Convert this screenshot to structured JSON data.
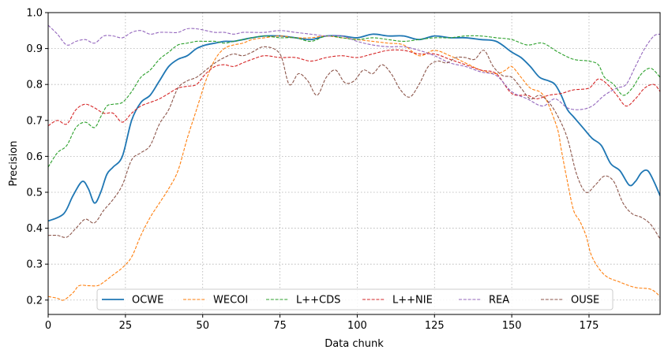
{
  "chart_data": {
    "type": "line",
    "xlabel": "Data chunk",
    "ylabel": "Precision",
    "xlim": [
      0,
      198
    ],
    "ylim": [
      0.16,
      1.0
    ],
    "xticks": [
      0,
      25,
      50,
      75,
      100,
      125,
      150,
      175
    ],
    "yticks": [
      0.2,
      0.3,
      0.4,
      0.5,
      0.6,
      0.7,
      0.8,
      0.9,
      1.0
    ],
    "grid": true,
    "legend_placement": "lower-center",
    "series": [
      {
        "name": "OCWE",
        "color": "#1f77b4",
        "style": "solid",
        "x": [
          0,
          5,
          8,
          11,
          13,
          15,
          17,
          19,
          21,
          24,
          27,
          30,
          33,
          36,
          39,
          42,
          45,
          48,
          51,
          54,
          57,
          60,
          63,
          66,
          70,
          75,
          80,
          85,
          90,
          95,
          100,
          105,
          110,
          115,
          120,
          125,
          130,
          135,
          140,
          145,
          150,
          153,
          156,
          159,
          162,
          164,
          166,
          168,
          170,
          173,
          176,
          179,
          182,
          185,
          188,
          190,
          192,
          194,
          196,
          198
        ],
        "y": [
          0.42,
          0.44,
          0.49,
          0.53,
          0.51,
          0.47,
          0.5,
          0.55,
          0.57,
          0.6,
          0.7,
          0.75,
          0.77,
          0.81,
          0.85,
          0.87,
          0.88,
          0.9,
          0.91,
          0.915,
          0.92,
          0.92,
          0.925,
          0.93,
          0.935,
          0.935,
          0.93,
          0.925,
          0.935,
          0.935,
          0.93,
          0.94,
          0.935,
          0.935,
          0.925,
          0.935,
          0.93,
          0.93,
          0.925,
          0.92,
          0.89,
          0.875,
          0.85,
          0.82,
          0.81,
          0.8,
          0.77,
          0.73,
          0.71,
          0.68,
          0.65,
          0.63,
          0.58,
          0.56,
          0.52,
          0.53,
          0.555,
          0.56,
          0.53,
          0.49
        ]
      },
      {
        "name": "WECOI",
        "color": "#ff7f0e",
        "style": "dashed",
        "x": [
          0,
          3,
          5,
          8,
          10,
          13,
          16,
          18,
          21,
          24,
          27,
          30,
          33,
          36,
          39,
          42,
          45,
          48,
          51,
          54,
          57,
          60,
          63,
          66,
          70,
          75,
          80,
          85,
          90,
          95,
          100,
          105,
          110,
          115,
          120,
          125,
          130,
          135,
          140,
          145,
          148,
          150,
          153,
          156,
          159,
          161,
          163,
          165,
          166,
          168,
          170,
          172,
          174,
          176,
          180,
          185,
          190,
          195,
          198
        ],
        "y": [
          0.21,
          0.205,
          0.2,
          0.22,
          0.24,
          0.24,
          0.24,
          0.25,
          0.27,
          0.29,
          0.32,
          0.38,
          0.43,
          0.47,
          0.51,
          0.56,
          0.65,
          0.73,
          0.81,
          0.87,
          0.9,
          0.91,
          0.915,
          0.925,
          0.93,
          0.935,
          0.93,
          0.93,
          0.935,
          0.93,
          0.925,
          0.92,
          0.915,
          0.91,
          0.88,
          0.895,
          0.88,
          0.86,
          0.84,
          0.83,
          0.84,
          0.85,
          0.82,
          0.79,
          0.78,
          0.76,
          0.72,
          0.67,
          0.62,
          0.53,
          0.45,
          0.42,
          0.38,
          0.32,
          0.27,
          0.25,
          0.235,
          0.23,
          0.21
        ]
      },
      {
        "name": "L++CDS",
        "color": "#2ca02c",
        "style": "dashed",
        "x": [
          0,
          3,
          6,
          9,
          12,
          15,
          17,
          19,
          21,
          24,
          27,
          30,
          33,
          36,
          39,
          42,
          45,
          48,
          51,
          54,
          57,
          60,
          63,
          66,
          70,
          75,
          80,
          85,
          90,
          95,
          100,
          105,
          110,
          115,
          120,
          125,
          130,
          135,
          140,
          145,
          150,
          155,
          160,
          165,
          170,
          175,
          178,
          180,
          183,
          186,
          189,
          192,
          195,
          198
        ],
        "y": [
          0.57,
          0.61,
          0.63,
          0.68,
          0.695,
          0.68,
          0.71,
          0.74,
          0.745,
          0.75,
          0.78,
          0.82,
          0.84,
          0.87,
          0.89,
          0.91,
          0.915,
          0.92,
          0.92,
          0.92,
          0.915,
          0.92,
          0.925,
          0.93,
          0.935,
          0.93,
          0.93,
          0.92,
          0.935,
          0.93,
          0.925,
          0.93,
          0.925,
          0.92,
          0.925,
          0.93,
          0.93,
          0.935,
          0.935,
          0.93,
          0.925,
          0.91,
          0.915,
          0.89,
          0.87,
          0.865,
          0.855,
          0.82,
          0.8,
          0.77,
          0.79,
          0.83,
          0.845,
          0.82
        ]
      },
      {
        "name": "L++NIE",
        "color": "#d62728",
        "style": "dashed",
        "x": [
          0,
          3,
          6,
          9,
          12,
          15,
          18,
          21,
          24,
          27,
          30,
          33,
          36,
          39,
          42,
          45,
          48,
          51,
          54,
          57,
          60,
          63,
          66,
          70,
          75,
          80,
          85,
          90,
          95,
          100,
          105,
          110,
          115,
          120,
          125,
          130,
          135,
          140,
          145,
          150,
          155,
          158,
          162,
          166,
          170,
          175,
          178,
          181,
          184,
          187,
          190,
          193,
          196,
          198
        ],
        "y": [
          0.685,
          0.7,
          0.69,
          0.73,
          0.745,
          0.735,
          0.72,
          0.72,
          0.695,
          0.72,
          0.74,
          0.75,
          0.76,
          0.775,
          0.79,
          0.795,
          0.8,
          0.83,
          0.85,
          0.855,
          0.85,
          0.86,
          0.87,
          0.88,
          0.875,
          0.875,
          0.865,
          0.875,
          0.88,
          0.875,
          0.885,
          0.895,
          0.895,
          0.885,
          0.885,
          0.87,
          0.855,
          0.84,
          0.83,
          0.775,
          0.77,
          0.76,
          0.77,
          0.775,
          0.785,
          0.79,
          0.815,
          0.8,
          0.77,
          0.74,
          0.76,
          0.79,
          0.8,
          0.78
        ]
      },
      {
        "name": "REA",
        "color": "#9467bd",
        "style": "dashed",
        "x": [
          0,
          3,
          6,
          9,
          12,
          15,
          18,
          21,
          24,
          27,
          30,
          33,
          36,
          39,
          42,
          45,
          48,
          51,
          54,
          57,
          60,
          63,
          66,
          70,
          75,
          80,
          85,
          90,
          95,
          100,
          105,
          110,
          115,
          120,
          125,
          130,
          135,
          140,
          145,
          150,
          155,
          160,
          164,
          168,
          172,
          176,
          180,
          184,
          187,
          190,
          193,
          196,
          198
        ],
        "y": [
          0.965,
          0.94,
          0.91,
          0.92,
          0.925,
          0.915,
          0.935,
          0.935,
          0.93,
          0.945,
          0.95,
          0.94,
          0.945,
          0.945,
          0.945,
          0.955,
          0.955,
          0.95,
          0.945,
          0.945,
          0.94,
          0.945,
          0.945,
          0.945,
          0.95,
          0.945,
          0.94,
          0.935,
          0.935,
          0.92,
          0.91,
          0.905,
          0.905,
          0.895,
          0.88,
          0.86,
          0.85,
          0.835,
          0.825,
          0.78,
          0.76,
          0.74,
          0.76,
          0.735,
          0.73,
          0.74,
          0.77,
          0.79,
          0.8,
          0.85,
          0.9,
          0.935,
          0.94
        ]
      },
      {
        "name": "OUSE",
        "color": "#8c564b",
        "style": "dashed",
        "x": [
          0,
          3,
          6,
          9,
          12,
          15,
          18,
          21,
          24,
          27,
          30,
          33,
          36,
          39,
          42,
          45,
          48,
          51,
          54,
          57,
          60,
          63,
          66,
          70,
          75,
          78,
          81,
          84,
          87,
          90,
          93,
          96,
          99,
          102,
          105,
          108,
          111,
          114,
          117,
          120,
          123,
          126,
          129,
          132,
          135,
          138,
          141,
          144,
          147,
          150,
          153,
          156,
          159,
          162,
          165,
          168,
          171,
          174,
          177,
          180,
          183,
          186,
          189,
          192,
          195,
          198
        ],
        "y": [
          0.38,
          0.38,
          0.375,
          0.4,
          0.425,
          0.415,
          0.45,
          0.48,
          0.52,
          0.59,
          0.61,
          0.63,
          0.69,
          0.73,
          0.79,
          0.81,
          0.82,
          0.84,
          0.86,
          0.875,
          0.885,
          0.88,
          0.89,
          0.905,
          0.885,
          0.8,
          0.83,
          0.81,
          0.77,
          0.82,
          0.84,
          0.805,
          0.81,
          0.84,
          0.83,
          0.855,
          0.83,
          0.785,
          0.765,
          0.8,
          0.85,
          0.865,
          0.86,
          0.875,
          0.875,
          0.87,
          0.895,
          0.85,
          0.825,
          0.82,
          0.79,
          0.76,
          0.77,
          0.75,
          0.71,
          0.65,
          0.55,
          0.5,
          0.52,
          0.545,
          0.53,
          0.47,
          0.44,
          0.43,
          0.41,
          0.37
        ]
      }
    ]
  }
}
